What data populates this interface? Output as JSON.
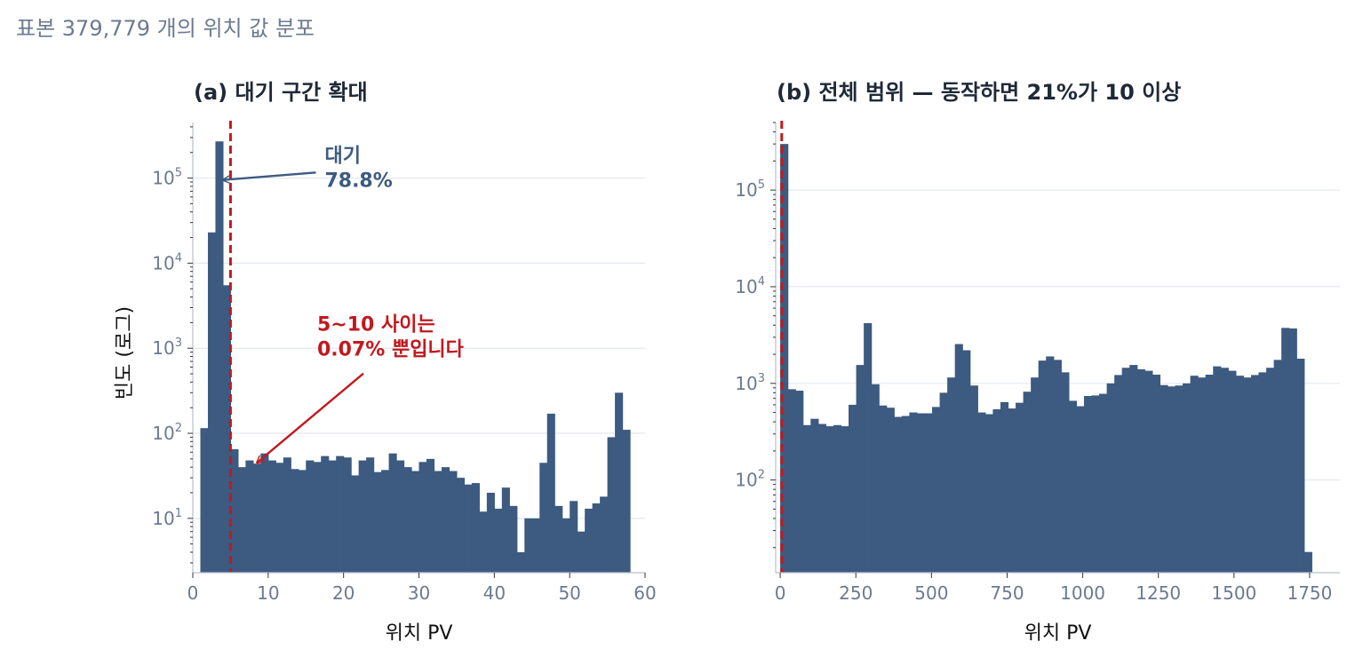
{
  "figure": {
    "suptitle": "표본 379,779 개의 위치 값 분포"
  },
  "colors": {
    "bar": "#3d5a80",
    "threshold": "#c0191e",
    "grid": "#e3e8ef",
    "axis_text": "#6b7a90",
    "title": "#1f2937",
    "label": "#111111"
  },
  "chart_data": [
    {
      "type": "bar",
      "title": "(a) 대기 구간 확대",
      "xlabel": "위치 PV",
      "ylabel": "빈도 (로그)",
      "xlim": [
        0,
        60
      ],
      "ylim": [
        2.3,
        450000
      ],
      "yscale": "log",
      "grid": "y",
      "xticks": [
        "0",
        "10",
        "20",
        "30",
        "40",
        "50",
        "60"
      ],
      "yticks": [
        {
          "base": "10",
          "exp": "1"
        },
        {
          "base": "10",
          "exp": "2"
        },
        {
          "base": "10",
          "exp": "3"
        },
        {
          "base": "10",
          "exp": "4"
        },
        {
          "base": "10",
          "exp": "5"
        }
      ],
      "threshold": 5,
      "bin_edges_start": 1,
      "bin_width": 1,
      "values": [
        115,
        23000,
        270000,
        5500,
        65,
        40,
        48,
        44,
        58,
        48,
        45,
        52,
        38,
        37,
        48,
        46,
        54,
        48,
        54,
        52,
        32,
        48,
        52,
        35,
        37,
        58,
        48,
        40,
        36,
        46,
        50,
        36,
        40,
        36,
        30,
        25,
        26,
        12,
        20,
        13,
        23,
        14,
        4,
        10,
        10,
        45,
        170,
        14,
        10,
        16,
        7,
        13,
        15,
        18,
        90,
        300,
        110
      ],
      "annotations": [
        {
          "text_lines": [
            "대기",
            "78.8%"
          ],
          "color": "#3d5a80",
          "target": [
            4,
            95000
          ],
          "text_at": [
            17.5,
            155000
          ]
        },
        {
          "text_lines": [
            "5~10 사이는",
            "0.07% 뿐입니다"
          ],
          "color": "#c0191e",
          "target": [
            8.5,
            45
          ],
          "text_at": [
            16.5,
            1600
          ]
        }
      ]
    },
    {
      "type": "bar",
      "title": "(b) 전체 범위 — 동작하면 21%가 10 이상",
      "xlabel": "위치 PV",
      "ylabel": "",
      "xlim": [
        -15,
        1850
      ],
      "ylim": [
        11,
        500000
      ],
      "yscale": "log",
      "grid": "y",
      "xticks": [
        "0",
        "250",
        "500",
        "750",
        "1000",
        "1250",
        "1500",
        "1750"
      ],
      "yticks": [
        {
          "base": "10",
          "exp": "2"
        },
        {
          "base": "10",
          "exp": "3"
        },
        {
          "base": "10",
          "exp": "4"
        },
        {
          "base": "10",
          "exp": "5"
        }
      ],
      "threshold": 5,
      "bin_edges_start": 0,
      "bin_width": 25.1,
      "values": [
        300000,
        870,
        840,
        370,
        430,
        380,
        360,
        370,
        360,
        600,
        1550,
        4200,
        980,
        590,
        560,
        450,
        460,
        500,
        490,
        490,
        570,
        800,
        1150,
        2550,
        2200,
        950,
        500,
        480,
        540,
        640,
        550,
        630,
        820,
        1150,
        1720,
        1900,
        1750,
        1300,
        660,
        580,
        740,
        750,
        780,
        1000,
        1220,
        1450,
        1550,
        1400,
        1350,
        1230,
        960,
        930,
        950,
        1000,
        1200,
        1150,
        1230,
        1500,
        1450,
        1350,
        1200,
        1150,
        1220,
        1300,
        1450,
        1750,
        3750,
        3700,
        1800,
        18
      ]
    }
  ]
}
